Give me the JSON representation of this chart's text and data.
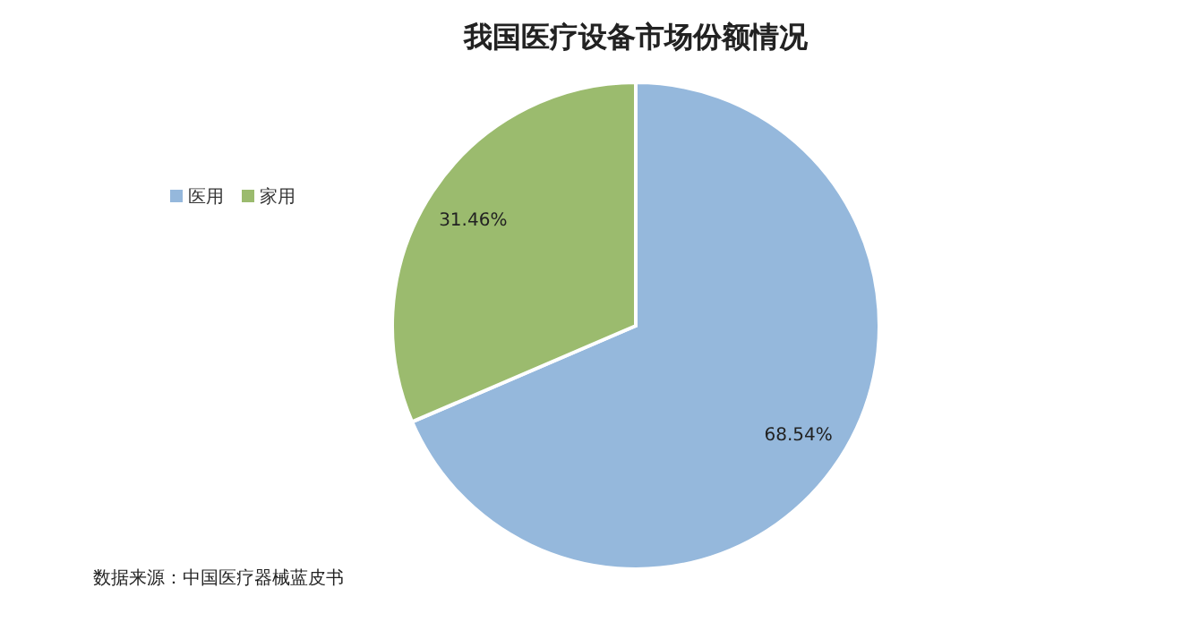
{
  "chart_data": {
    "type": "pie",
    "title": "我国医疗设备市场份额情况",
    "categories": [
      "医用",
      "家用"
    ],
    "values": [
      68.54,
      31.46
    ],
    "colors": [
      "#95b8dc",
      "#9bbb6e"
    ],
    "value_labels": [
      "68.54%",
      "31.46%"
    ],
    "legend": "left",
    "annotations": [
      "数据来源：中国医疗器械蓝皮书"
    ]
  }
}
